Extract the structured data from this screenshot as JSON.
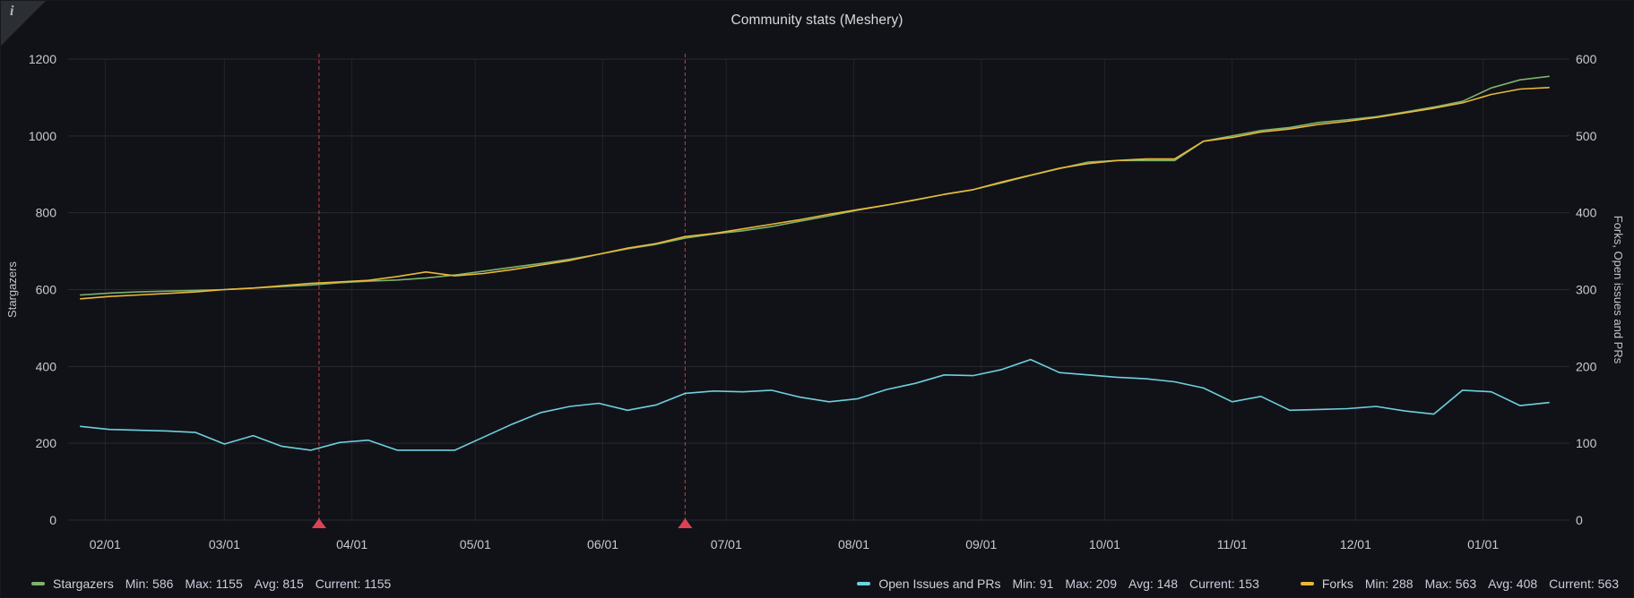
{
  "panel": {
    "title": "Community stats (Meshery)",
    "info_corner_glyph": "i",
    "background": "#111217"
  },
  "legend": {
    "stat_labels": {
      "min": "Min:",
      "max": "Max:",
      "avg": "Avg:",
      "current": "Current:"
    },
    "items": [
      {
        "name": "Stargazers",
        "color": "#7eb26d",
        "min": 586,
        "max": 1155,
        "avg": 815,
        "current": 1155
      },
      {
        "name": "Open Issues and PRs",
        "color": "#6ed0e0",
        "min": 91,
        "max": 209,
        "avg": 148,
        "current": 153
      },
      {
        "name": "Forks",
        "color": "#eab839",
        "min": 288,
        "max": 563,
        "avg": 408,
        "current": 563
      }
    ]
  },
  "chart_data": {
    "type": "line",
    "title": "Community stats (Meshery)",
    "grid": true,
    "legend_position": "bottom",
    "x_axis": {
      "kind": "time",
      "domain_days": [
        22,
        387
      ],
      "tick_days": [
        31,
        60,
        91,
        121,
        152,
        182,
        213,
        244,
        274,
        305,
        335,
        366
      ],
      "tick_labels": [
        "02/01",
        "03/01",
        "04/01",
        "05/01",
        "06/01",
        "07/01",
        "08/01",
        "09/01",
        "10/01",
        "11/01",
        "12/01",
        "01/01"
      ]
    },
    "y_axis_left": {
      "label": "Stargazers",
      "min": 0,
      "max": 1200,
      "ticks": [
        0,
        200,
        400,
        600,
        800,
        1000,
        1200
      ]
    },
    "y_axis_right": {
      "label": "Forks, Open issues and PRs",
      "min": 0,
      "max": 600,
      "ticks": [
        0,
        100,
        200,
        300,
        400,
        500,
        600
      ]
    },
    "sample_days": [
      25,
      32,
      39,
      46,
      53,
      60,
      67,
      74,
      81,
      88,
      95,
      102,
      109,
      116,
      123,
      130,
      137,
      144,
      151,
      158,
      165,
      172,
      179,
      186,
      193,
      200,
      207,
      214,
      221,
      228,
      235,
      242,
      249,
      256,
      263,
      270,
      277,
      284,
      291,
      298,
      305,
      312,
      319,
      326,
      333,
      340,
      347,
      354,
      361,
      368,
      375,
      382
    ],
    "series": [
      {
        "name": "Stargazers",
        "axis": "left",
        "color": "#7eb26d",
        "values": [
          586,
          591,
          594,
          596,
          598,
          600,
          604,
          608,
          612,
          618,
          622,
          625,
          630,
          638,
          648,
          658,
          668,
          679,
          692,
          706,
          718,
          734,
          745,
          753,
          764,
          778,
          792,
          807,
          820,
          833,
          848,
          860,
          878,
          897,
          915,
          932,
          936,
          936,
          936,
          986,
          1000,
          1014,
          1022,
          1035,
          1042,
          1050,
          1062,
          1075,
          1090,
          1125,
          1146,
          1155
        ]
      },
      {
        "name": "Open Issues and PRs",
        "axis": "right",
        "color": "#6ed0e0",
        "values": [
          122,
          118,
          117,
          116,
          114,
          99,
          110,
          96,
          91,
          101,
          104,
          91,
          91,
          91,
          108,
          125,
          140,
          148,
          152,
          143,
          150,
          165,
          168,
          167,
          169,
          160,
          154,
          158,
          170,
          178,
          189,
          188,
          196,
          209,
          192,
          189,
          186,
          184,
          180,
          172,
          154,
          161,
          143,
          144,
          145,
          148,
          142,
          138,
          169,
          167,
          149,
          153
        ]
      },
      {
        "name": "Forks",
        "axis": "right",
        "color": "#eab839",
        "values": [
          288,
          291,
          293,
          295,
          297,
          300,
          302,
          305,
          308,
          310,
          312,
          317,
          323,
          318,
          321,
          326,
          332,
          338,
          346,
          354,
          360,
          369,
          373,
          379,
          385,
          391,
          398,
          404,
          410,
          417,
          424,
          430,
          440,
          449,
          458,
          464,
          468,
          470,
          470,
          493,
          498,
          505,
          509,
          515,
          519,
          524,
          530,
          536,
          543,
          554,
          561,
          563
        ]
      }
    ],
    "annotations": {
      "color": "#f2495c",
      "style": "dashed-vertical",
      "days": [
        83,
        172
      ]
    }
  },
  "colors": {
    "grid_horizontal": "rgba(255,255,255,0.10)",
    "grid_vertical": "rgba(255,255,255,0.07)",
    "tick_text": "#c9cacc",
    "title_text": "#d8d9da"
  }
}
